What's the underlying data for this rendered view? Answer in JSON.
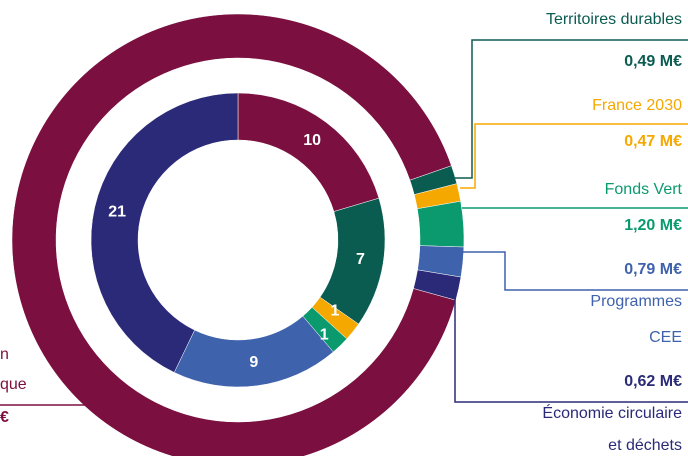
{
  "chart_data": {
    "type": "nested-donut",
    "outer": {
      "start_angle": 70.8,
      "series": [
        {
          "label_lines": [
            "Territoires durables"
          ],
          "value": 0.49,
          "value_label": "0,49 M€",
          "color": "#0b5c50"
        },
        {
          "label_lines": [
            "France 2030"
          ],
          "value": 0.47,
          "value_label": "0,47 M€",
          "color": "#f5a800"
        },
        {
          "label_lines": [
            "Fonds Vert"
          ],
          "value": 1.2,
          "value_label": "1,20 M€",
          "color": "#0a9a6e"
        },
        {
          "label_lines": [
            "Programmes",
            "CEE"
          ],
          "value": 0.79,
          "value_label": "0,79 M€",
          "color": "#3f62ad"
        },
        {
          "label_lines": [
            "Économie circulaire",
            "et déchets"
          ],
          "value": 0.62,
          "value_label": "0,62 M€",
          "color": "#2a2a78"
        },
        {
          "label_lines": [
            "n",
            "que"
          ],
          "value": 33.5,
          "value_label": "€",
          "color": "#7b1040"
        }
      ]
    },
    "inner": {
      "start_angle": 0,
      "series": [
        {
          "value": 10,
          "color": "#7b1040"
        },
        {
          "value": 7,
          "color": "#0b5c50"
        },
        {
          "value": 1,
          "color": "#f5a800"
        },
        {
          "value": 1,
          "color": "#0a9a6e"
        },
        {
          "value": 9,
          "color": "#3f62ad"
        },
        {
          "value": 21,
          "color": "#2a2a78"
        }
      ]
    }
  }
}
